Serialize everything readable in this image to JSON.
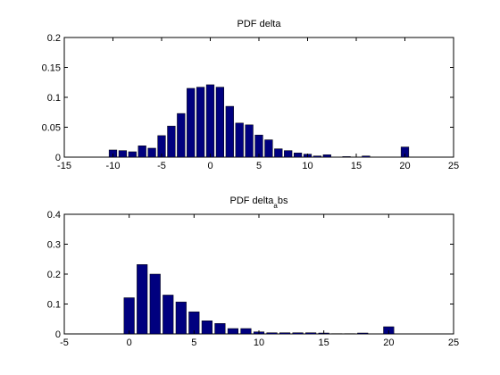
{
  "figure": {
    "background": "#ffffff",
    "bar_color": "#00007f"
  },
  "chart_data": [
    {
      "type": "bar",
      "title": "PDF delta",
      "title_sub": "",
      "title_tail": "",
      "xlabel": "",
      "ylabel": "",
      "xlim": [
        -15,
        25
      ],
      "ylim": [
        0,
        0.2
      ],
      "xticks": [
        -15,
        -10,
        -5,
        0,
        5,
        10,
        15,
        20,
        25
      ],
      "yticks": [
        0,
        0.05,
        0.1,
        0.15,
        0.2
      ],
      "xtick_labels": [
        "-15",
        "-10",
        "-5",
        "0",
        "5",
        "10",
        "15",
        "20",
        "25"
      ],
      "ytick_labels": [
        "0",
        "0.05",
        "0.1",
        "0.15",
        "0.2"
      ],
      "grid": false,
      "bar_width": 0.8,
      "x": [
        -10,
        -9,
        -8,
        -7,
        -6,
        -5,
        -4,
        -3,
        -2,
        -1,
        0,
        1,
        2,
        3,
        4,
        5,
        6,
        7,
        8,
        9,
        10,
        11,
        12,
        13,
        14,
        15,
        16,
        17,
        18,
        19,
        20
      ],
      "values": [
        0.012,
        0.011,
        0.009,
        0.019,
        0.015,
        0.036,
        0.052,
        0.073,
        0.115,
        0.117,
        0.121,
        0.117,
        0.085,
        0.057,
        0.054,
        0.037,
        0.029,
        0.014,
        0.011,
        0.007,
        0.005,
        0.002,
        0.004,
        0,
        0.001,
        0,
        0.002,
        0,
        0,
        0,
        0.017
      ]
    },
    {
      "type": "bar",
      "title": "PDF delta",
      "title_sub": "a",
      "title_tail": "bs",
      "xlabel": "",
      "ylabel": "",
      "xlim": [
        -5,
        25
      ],
      "ylim": [
        0,
        0.4
      ],
      "xticks": [
        -5,
        0,
        5,
        10,
        15,
        20,
        25
      ],
      "yticks": [
        0,
        0.1,
        0.2,
        0.3,
        0.4
      ],
      "xtick_labels": [
        "-5",
        "0",
        "5",
        "10",
        "15",
        "20",
        "25"
      ],
      "ytick_labels": [
        "0",
        "0.1",
        "0.2",
        "0.3",
        "0.4"
      ],
      "grid": false,
      "bar_width": 0.8,
      "x": [
        0,
        1,
        2,
        3,
        4,
        5,
        6,
        7,
        8,
        9,
        10,
        11,
        12,
        13,
        14,
        15,
        16,
        17,
        18,
        19,
        20
      ],
      "values": [
        0.121,
        0.232,
        0.2,
        0.13,
        0.107,
        0.074,
        0.044,
        0.035,
        0.018,
        0.018,
        0.007,
        0.004,
        0.004,
        0.004,
        0.004,
        0.003,
        0.001,
        0.001,
        0.003,
        0,
        0.024
      ]
    }
  ]
}
